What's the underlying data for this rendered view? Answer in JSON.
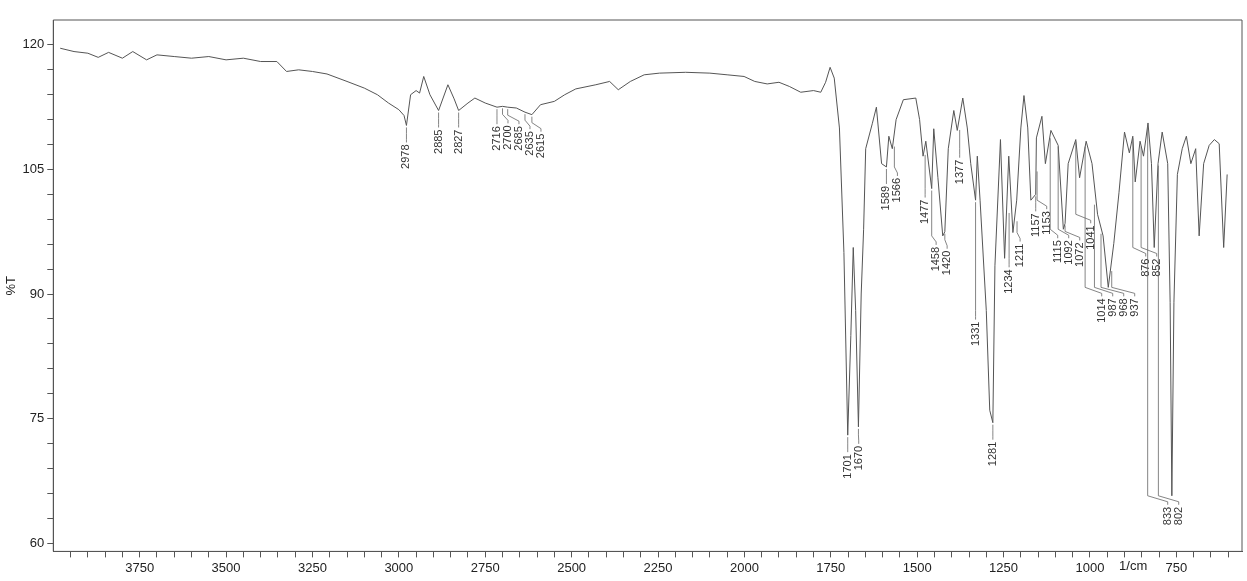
{
  "chart_data": {
    "type": "line",
    "ylabel": "%T",
    "xlabel": "1/cm",
    "xlim": [
      4000,
      560
    ],
    "ylim": [
      59,
      123
    ],
    "xticks": [
      {
        "value": 3950,
        "label": null
      },
      {
        "value": 3900,
        "label": null
      },
      {
        "value": 3850,
        "label": null
      },
      {
        "value": 3800,
        "label": null
      },
      3750,
      {
        "value": 3700,
        "label": null
      },
      {
        "value": 3650,
        "label": null
      },
      {
        "value": 3600,
        "label": null
      },
      {
        "value": 3550,
        "label": null
      },
      3500,
      {
        "value": 3450,
        "label": null
      },
      {
        "value": 3400,
        "label": null
      },
      {
        "value": 3350,
        "label": null
      },
      {
        "value": 3300,
        "label": null
      },
      3250,
      {
        "value": 3200,
        "label": null
      },
      {
        "value": 3150,
        "label": null
      },
      {
        "value": 3100,
        "label": null
      },
      {
        "value": 3050,
        "label": null
      },
      3000,
      {
        "value": 2950,
        "label": null
      },
      {
        "value": 2900,
        "label": null
      },
      {
        "value": 2850,
        "label": null
      },
      {
        "value": 2800,
        "label": null
      },
      2750,
      {
        "value": 2700,
        "label": null
      },
      {
        "value": 2650,
        "label": null
      },
      {
        "value": 2600,
        "label": null
      },
      {
        "value": 2550,
        "label": null
      },
      2500,
      {
        "value": 2450,
        "label": null
      },
      {
        "value": 2400,
        "label": null
      },
      {
        "value": 2350,
        "label": null
      },
      {
        "value": 2300,
        "label": null
      },
      2250,
      {
        "value": 2200,
        "label": null
      },
      {
        "value": 2150,
        "label": null
      },
      {
        "value": 2100,
        "label": null
      },
      {
        "value": 2050,
        "label": null
      },
      2000,
      {
        "value": 1950,
        "label": null
      },
      {
        "value": 1900,
        "label": null
      },
      {
        "value": 1850,
        "label": null
      },
      {
        "value": 1800,
        "label": null
      },
      1750,
      {
        "value": 1700,
        "label": null
      },
      {
        "value": 1650,
        "label": null
      },
      {
        "value": 1600,
        "label": null
      },
      {
        "value": 1550,
        "label": null
      },
      1500,
      {
        "value": 1450,
        "label": null
      },
      {
        "value": 1400,
        "label": null
      },
      {
        "value": 1350,
        "label": null
      },
      {
        "value": 1300,
        "label": null
      },
      1250,
      {
        "value": 1200,
        "label": null
      },
      {
        "value": 1150,
        "label": null
      },
      {
        "value": 1100,
        "label": null
      },
      {
        "value": 1050,
        "label": null
      },
      1000,
      {
        "value": 950,
        "label": null
      },
      {
        "value": 900,
        "label": null
      },
      {
        "value": 850,
        "label": null
      },
      {
        "value": 800,
        "label": null
      },
      750,
      {
        "value": 700,
        "label": null
      },
      {
        "value": 650,
        "label": null
      },
      {
        "value": 600,
        "label": null
      }
    ],
    "yticks": [
      60,
      {
        "value": 63,
        "label": null
      },
      {
        "value": 66,
        "label": null
      },
      {
        "value": 69,
        "label": null
      },
      {
        "value": 72,
        "label": null
      },
      75,
      {
        "value": 78,
        "label": null
      },
      {
        "value": 81,
        "label": null
      },
      {
        "value": 84,
        "label": null
      },
      {
        "value": 87,
        "label": null
      },
      90,
      {
        "value": 93,
        "label": null
      },
      {
        "value": 96,
        "label": null
      },
      {
        "value": 99,
        "label": null
      },
      {
        "value": 102,
        "label": null
      },
      105,
      {
        "value": 108,
        "label": null
      },
      {
        "value": 111,
        "label": null
      },
      {
        "value": 114,
        "label": null
      },
      {
        "value": 117,
        "label": null
      },
      120
    ],
    "series": [
      {
        "color": "#555555",
        "x": [
          3980,
          3940,
          3900,
          3870,
          3840,
          3800,
          3770,
          3730,
          3700,
          3650,
          3600,
          3550,
          3500,
          3450,
          3400,
          3353,
          3325,
          3290,
          3250,
          3208,
          3150,
          3100,
          3062,
          3030,
          3000,
          2985,
          2978,
          2966,
          2950,
          2940,
          2928,
          2910,
          2885,
          2858,
          2840,
          2827,
          2800,
          2780,
          2750,
          2716,
          2700,
          2685,
          2660,
          2635,
          2615,
          2590,
          2550,
          2520,
          2488,
          2430,
          2390,
          2365,
          2330,
          2290,
          2246,
          2170,
          2100,
          2050,
          2001,
          1970,
          1934,
          1900,
          1870,
          1837,
          1800,
          1779,
          1765,
          1752,
          1740,
          1725,
          1712,
          1701,
          1692,
          1685,
          1678,
          1670,
          1662,
          1655,
          1649,
          1630,
          1618,
          1603,
          1589,
          1582,
          1572,
          1561,
          1540,
          1504,
          1493,
          1483,
          1475,
          1458,
          1452,
          1440,
          1426,
          1420,
          1410,
          1394,
          1384,
          1368,
          1355,
          1345,
          1331,
          1326,
          1318,
          1300,
          1290,
          1281,
          1275,
          1259,
          1247,
          1235,
          1223,
          1212,
          1200,
          1191,
          1180,
          1171,
          1157,
          1155,
          1139,
          1129,
          1113,
          1092,
          1077,
          1072,
          1063,
          1041,
          1030,
          1011,
          994,
          978,
          962,
          947,
          931,
          916,
          900,
          886,
          876,
          869,
          855,
          845,
          832,
          822,
          814,
          803,
          791,
          775,
          768,
          763,
          757,
          747,
          733,
          721,
          708,
          694,
          684,
          671,
          655,
          640,
          626,
          613,
          603
        ],
        "values": [
          119.6,
          119.2,
          119.0,
          118.5,
          119.1,
          118.4,
          119.2,
          118.2,
          118.8,
          118.6,
          118.4,
          118.6,
          118.2,
          118.4,
          118.0,
          118.0,
          116.8,
          117.0,
          116.8,
          116.5,
          115.6,
          114.8,
          114.0,
          113.0,
          112.2,
          111.5,
          110.3,
          114.0,
          114.5,
          114.2,
          116.2,
          114.0,
          112.1,
          115.2,
          113.5,
          112.1,
          113.0,
          113.6,
          113.0,
          112.5,
          112.6,
          112.5,
          112.4,
          111.9,
          111.6,
          112.8,
          113.2,
          114.0,
          114.7,
          115.2,
          115.6,
          114.6,
          115.6,
          116.4,
          116.6,
          116.7,
          116.6,
          116.4,
          116.2,
          115.6,
          115.3,
          115.5,
          115.0,
          114.3,
          114.5,
          114.3,
          115.5,
          117.3,
          116.0,
          110.0,
          95.0,
          73.0,
          85.0,
          95.6,
          88.0,
          74.0,
          90.0,
          97.8,
          107.5,
          110.5,
          112.5,
          105.7,
          105.3,
          109.0,
          107.5,
          111.0,
          113.4,
          113.6,
          111.0,
          106.6,
          108.4,
          102.7,
          109.9,
          104.0,
          97.0,
          97.5,
          107.5,
          112.1,
          109.7,
          113.6,
          110.0,
          105.7,
          101.3,
          106.6,
          101.3,
          88.0,
          76.0,
          74.5,
          93.4,
          108.6,
          94.3,
          106.6,
          97.4,
          101.3,
          110.0,
          113.9,
          110.0,
          101.3,
          102.0,
          108.8,
          111.4,
          105.7,
          109.7,
          107.9,
          97.8,
          98.5,
          105.7,
          108.6,
          104.0,
          108.4,
          105.7,
          99.6,
          97.0,
          90.8,
          96.1,
          102.2,
          109.5,
          107.0,
          109.0,
          103.5,
          108.4,
          106.6,
          110.6,
          105.7,
          95.6,
          105.7,
          109.5,
          105.7,
          89.0,
          65.7,
          89.0,
          104.4,
          107.5,
          109.0,
          105.7,
          107.5,
          97.0,
          105.7,
          107.9,
          108.6,
          108.1,
          95.6,
          104.4
        ]
      }
    ],
    "annotations": [
      {
        "text": "2978",
        "x": 2978,
        "y": 110.3
      },
      {
        "text": "2885",
        "x": 2885,
        "y": 112.1
      },
      {
        "text": "2827",
        "x": 2827,
        "y": 112.1
      },
      {
        "text": "2716",
        "x": 2716,
        "y": 112.5
      },
      {
        "text": "2700",
        "x": 2700,
        "y": 112.6
      },
      {
        "text": "2685",
        "x": 2685,
        "y": 112.5
      },
      {
        "text": "2635",
        "x": 2635,
        "y": 111.9
      },
      {
        "text": "2615",
        "x": 2615,
        "y": 111.6
      },
      {
        "text": "1701",
        "x": 1701,
        "y": 73
      },
      {
        "text": "1670",
        "x": 1670,
        "y": 74
      },
      {
        "text": "1589",
        "x": 1589,
        "y": 105.3
      },
      {
        "text": "1566",
        "x": 1566,
        "y": 108
      },
      {
        "text": "1477",
        "x": 1477,
        "y": 107
      },
      {
        "text": "1458",
        "x": 1458,
        "y": 102.7
      },
      {
        "text": "1420",
        "x": 1420,
        "y": 97.5
      },
      {
        "text": "1377",
        "x": 1377,
        "y": 110
      },
      {
        "text": "1331",
        "x": 1331,
        "y": 101.3
      },
      {
        "text": "1281",
        "x": 1281,
        "y": 74.5
      },
      {
        "text": "1234",
        "x": 1234,
        "y": 100
      },
      {
        "text": "1211",
        "x": 1211,
        "y": 99
      },
      {
        "text": "1157",
        "x": 1157,
        "y": 102
      },
      {
        "text": "1153",
        "x": 1153,
        "y": 105
      },
      {
        "text": "1115",
        "x": 1115,
        "y": 109
      },
      {
        "text": "1092",
        "x": 1092,
        "y": 108
      },
      {
        "text": "1072",
        "x": 1072,
        "y": 98.5
      },
      {
        "text": "1041",
        "x": 1041,
        "y": 108.6
      },
      {
        "text": "1014",
        "x": 1014,
        "y": 108
      },
      {
        "text": "987",
        "x": 987,
        "y": 101
      },
      {
        "text": "968",
        "x": 968,
        "y": 97.5
      },
      {
        "text": "937",
        "x": 937,
        "y": 93
      },
      {
        "text": "876",
        "x": 876,
        "y": 109
      },
      {
        "text": "852",
        "x": 852,
        "y": 108
      },
      {
        "text": "833",
        "x": 833,
        "y": 110.6
      },
      {
        "text": "802",
        "x": 802,
        "y": 105.7
      }
    ]
  }
}
